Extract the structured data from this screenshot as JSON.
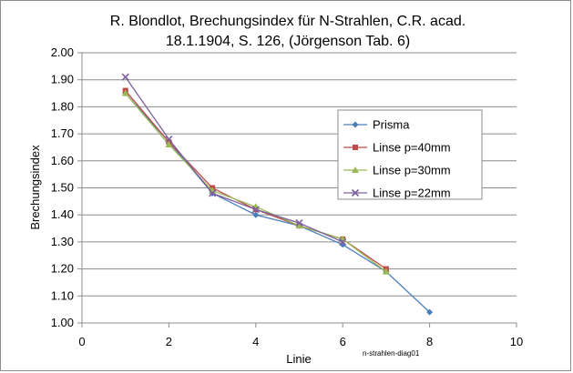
{
  "chart_data": {
    "type": "scatter",
    "title_line1": "R. Blondlot, Brechungsindex für N-Strahlen, C.R. acad.",
    "title_line2": "18.1.1904, S. 126, (Jörgenson Tab. 6)",
    "xlabel": "Linie",
    "ylabel": "Brechungsindex",
    "xlim": [
      0,
      10
    ],
    "ylim": [
      1.0,
      2.0
    ],
    "xticks": [
      0,
      2,
      4,
      6,
      8,
      10
    ],
    "yticks": [
      1.0,
      1.1,
      1.2,
      1.3,
      1.4,
      1.5,
      1.6,
      1.7,
      1.8,
      1.9,
      2.0
    ],
    "ytick_labels": [
      "1.00",
      "1.10",
      "1.20",
      "1.30",
      "1.40",
      "1.50",
      "1.60",
      "1.70",
      "1.80",
      "1.90",
      "2.00"
    ],
    "grid": "horizontal",
    "legend_position": "right",
    "note": "n-strahlen-diag01",
    "series": [
      {
        "name": "Prisma",
        "color": "#4a7ebb",
        "marker": "diamond",
        "x": [
          1,
          2,
          3,
          4,
          5,
          6,
          7,
          8
        ],
        "y": [
          1.85,
          1.67,
          1.48,
          1.4,
          1.36,
          1.29,
          1.19,
          1.04
        ]
      },
      {
        "name": "Linse p=40mm",
        "color": "#be4b48",
        "marker": "square",
        "x": [
          1,
          2,
          3,
          4,
          5,
          6,
          7
        ],
        "y": [
          1.86,
          1.67,
          1.5,
          1.42,
          1.36,
          1.31,
          1.2
        ]
      },
      {
        "name": "Linse p=30mm",
        "color": "#98b954",
        "marker": "triangle",
        "x": [
          1,
          2,
          3,
          4,
          5,
          6,
          7
        ],
        "y": [
          1.85,
          1.66,
          1.49,
          1.43,
          1.36,
          1.31,
          1.19
        ]
      },
      {
        "name": "Linse p=22mm",
        "color": "#7d60a0",
        "marker": "x",
        "x": [
          1,
          2,
          3,
          4,
          5,
          6
        ],
        "y": [
          1.91,
          1.68,
          1.48,
          1.42,
          1.37,
          1.3
        ]
      }
    ]
  }
}
